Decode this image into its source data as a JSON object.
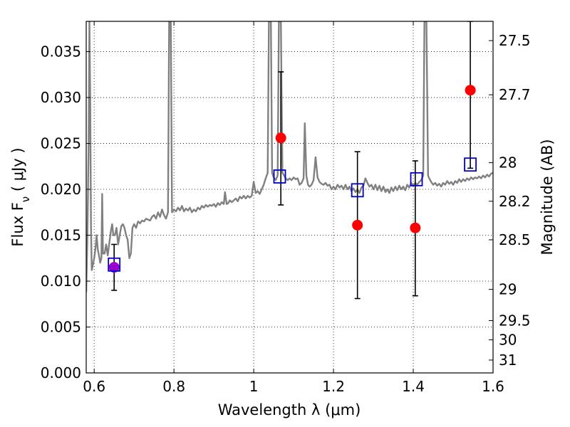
{
  "chart_data": {
    "type": "scatter",
    "xlabel": "Wavelength  λ (μm)",
    "ylabel_left": {
      "prefix": "Flux  F",
      "sub": "ν",
      "suffix": "  ( μJy )"
    },
    "ylabel_right": "Magnitude (AB)",
    "xlim": [
      0.58,
      1.6
    ],
    "ylim": [
      0.0,
      0.0383
    ],
    "grid": true,
    "x_ticks": [
      {
        "value": 0.6,
        "label": "0.6"
      },
      {
        "value": 0.8,
        "label": "0.8"
      },
      {
        "value": 1.0,
        "label": "1"
      },
      {
        "value": 1.2,
        "label": "1.2"
      },
      {
        "value": 1.4,
        "label": "1.4"
      },
      {
        "value": 1.6,
        "label": "1.6"
      }
    ],
    "y_ticks": [
      {
        "value": 0.0,
        "label": "0.000"
      },
      {
        "value": 0.005,
        "label": "0.005"
      },
      {
        "value": 0.01,
        "label": "0.010"
      },
      {
        "value": 0.015,
        "label": "0.015"
      },
      {
        "value": 0.02,
        "label": "0.020"
      },
      {
        "value": 0.025,
        "label": "0.025"
      },
      {
        "value": 0.03,
        "label": "0.030"
      },
      {
        "value": 0.035,
        "label": "0.035"
      }
    ],
    "right_ticks": [
      {
        "flux": 0.0362,
        "label": "27.5"
      },
      {
        "flux": 0.0303,
        "label": "27.7"
      },
      {
        "flux": 0.0229,
        "label": "28"
      },
      {
        "flux": 0.0187,
        "label": "28.2"
      },
      {
        "flux": 0.0145,
        "label": "28.5"
      },
      {
        "flux": 0.0091,
        "label": "29"
      },
      {
        "flux": 0.0057,
        "label": "29.5"
      },
      {
        "flux": 0.0036,
        "label": "30"
      },
      {
        "flux": 0.0014,
        "label": "31"
      }
    ],
    "series": [
      {
        "kind": "spectrum",
        "color": "#808080",
        "points": [
          [
            0.58,
            0.0088
          ],
          [
            0.583,
            0.015
          ],
          [
            0.586,
            0.025
          ],
          [
            0.588,
            0.0383
          ],
          [
            0.59,
            0.03
          ],
          [
            0.592,
            0.016
          ],
          [
            0.594,
            0.0112
          ],
          [
            0.597,
            0.0118
          ],
          [
            0.6,
            0.0125
          ],
          [
            0.603,
            0.0135
          ],
          [
            0.606,
            0.015
          ],
          [
            0.609,
            0.0135
          ],
          [
            0.612,
            0.0128
          ],
          [
            0.615,
            0.012
          ],
          [
            0.618,
            0.0125
          ],
          [
            0.62,
            0.0195
          ],
          [
            0.622,
            0.013
          ],
          [
            0.626,
            0.013
          ],
          [
            0.63,
            0.014
          ],
          [
            0.634,
            0.0128
          ],
          [
            0.638,
            0.0142
          ],
          [
            0.642,
            0.0155
          ],
          [
            0.645,
            0.0162
          ],
          [
            0.648,
            0.015
          ],
          [
            0.652,
            0.015
          ],
          [
            0.656,
            0.0158
          ],
          [
            0.66,
            0.014
          ],
          [
            0.664,
            0.015
          ],
          [
            0.668,
            0.016
          ],
          [
            0.672,
            0.0162
          ],
          [
            0.676,
            0.0158
          ],
          [
            0.68,
            0.015
          ],
          [
            0.684,
            0.0145
          ],
          [
            0.688,
            0.0125
          ],
          [
            0.692,
            0.013
          ],
          [
            0.696,
            0.0158
          ],
          [
            0.7,
            0.0162
          ],
          [
            0.705,
            0.0158
          ],
          [
            0.71,
            0.0165
          ],
          [
            0.715,
            0.0163
          ],
          [
            0.72,
            0.0166
          ],
          [
            0.725,
            0.0165
          ],
          [
            0.73,
            0.0168
          ],
          [
            0.735,
            0.0167
          ],
          [
            0.74,
            0.0166
          ],
          [
            0.745,
            0.017
          ],
          [
            0.75,
            0.0172
          ],
          [
            0.755,
            0.0168
          ],
          [
            0.76,
            0.0175
          ],
          [
            0.765,
            0.017
          ],
          [
            0.77,
            0.0178
          ],
          [
            0.775,
            0.0172
          ],
          [
            0.78,
            0.0168
          ],
          [
            0.785,
            0.0175
          ],
          [
            0.788,
            0.0383
          ],
          [
            0.792,
            0.0383
          ],
          [
            0.795,
            0.0175
          ],
          [
            0.8,
            0.0178
          ],
          [
            0.805,
            0.0176
          ],
          [
            0.81,
            0.018
          ],
          [
            0.815,
            0.0177
          ],
          [
            0.82,
            0.0182
          ],
          [
            0.825,
            0.0176
          ],
          [
            0.83,
            0.0179
          ],
          [
            0.835,
            0.0177
          ],
          [
            0.84,
            0.018
          ],
          [
            0.845,
            0.0175
          ],
          [
            0.85,
            0.0178
          ],
          [
            0.855,
            0.0176
          ],
          [
            0.86,
            0.018
          ],
          [
            0.865,
            0.0178
          ],
          [
            0.87,
            0.0182
          ],
          [
            0.875,
            0.018
          ],
          [
            0.88,
            0.0183
          ],
          [
            0.885,
            0.0181
          ],
          [
            0.89,
            0.0183
          ],
          [
            0.895,
            0.0182
          ],
          [
            0.9,
            0.0184
          ],
          [
            0.905,
            0.0181
          ],
          [
            0.91,
            0.0185
          ],
          [
            0.915,
            0.0183
          ],
          [
            0.92,
            0.0186
          ],
          [
            0.925,
            0.0184
          ],
          [
            0.928,
            0.0197
          ],
          [
            0.932,
            0.0184
          ],
          [
            0.936,
            0.0185
          ],
          [
            0.94,
            0.0188
          ],
          [
            0.945,
            0.0186
          ],
          [
            0.95,
            0.0188
          ],
          [
            0.955,
            0.019
          ],
          [
            0.96,
            0.0187
          ],
          [
            0.965,
            0.0192
          ],
          [
            0.97,
            0.019
          ],
          [
            0.975,
            0.0193
          ],
          [
            0.98,
            0.019
          ],
          [
            0.985,
            0.0193
          ],
          [
            0.99,
            0.0191
          ],
          [
            0.995,
            0.0193
          ],
          [
            1.0,
            0.0208
          ],
          [
            1.005,
            0.0196
          ],
          [
            1.01,
            0.0198
          ],
          [
            1.015,
            0.0195
          ],
          [
            1.02,
            0.02
          ],
          [
            1.025,
            0.0205
          ],
          [
            1.03,
            0.0212
          ],
          [
            1.035,
            0.0218
          ],
          [
            1.038,
            0.0383
          ],
          [
            1.043,
            0.0383
          ],
          [
            1.046,
            0.0218
          ],
          [
            1.05,
            0.0213
          ],
          [
            1.055,
            0.021
          ],
          [
            1.06,
            0.0215
          ],
          [
            1.063,
            0.0383
          ],
          [
            1.068,
            0.0383
          ],
          [
            1.072,
            0.0218
          ],
          [
            1.076,
            0.0215
          ],
          [
            1.08,
            0.0212
          ],
          [
            1.085,
            0.021
          ],
          [
            1.09,
            0.0212
          ],
          [
            1.095,
            0.021
          ],
          [
            1.1,
            0.0213
          ],
          [
            1.105,
            0.0211
          ],
          [
            1.11,
            0.0212
          ],
          [
            1.115,
            0.0205
          ],
          [
            1.12,
            0.0207
          ],
          [
            1.125,
            0.0212
          ],
          [
            1.128,
            0.0272
          ],
          [
            1.132,
            0.0215
          ],
          [
            1.136,
            0.0205
          ],
          [
            1.14,
            0.0203
          ],
          [
            1.145,
            0.0205
          ],
          [
            1.15,
            0.021
          ],
          [
            1.155,
            0.0235
          ],
          [
            1.16,
            0.0213
          ],
          [
            1.165,
            0.0208
          ],
          [
            1.17,
            0.0206
          ],
          [
            1.175,
            0.0205
          ],
          [
            1.18,
            0.0207
          ],
          [
            1.185,
            0.0204
          ],
          [
            1.19,
            0.0205
          ],
          [
            1.195,
            0.02
          ],
          [
            1.2,
            0.0203
          ],
          [
            1.205,
            0.02
          ],
          [
            1.21,
            0.0205
          ],
          [
            1.215,
            0.0202
          ],
          [
            1.22,
            0.0204
          ],
          [
            1.225,
            0.02
          ],
          [
            1.23,
            0.0205
          ],
          [
            1.235,
            0.02
          ],
          [
            1.24,
            0.0203
          ],
          [
            1.245,
            0.0198
          ],
          [
            1.25,
            0.0201
          ],
          [
            1.255,
            0.0197
          ],
          [
            1.26,
            0.02
          ],
          [
            1.265,
            0.0196
          ],
          [
            1.27,
            0.0202
          ],
          [
            1.275,
            0.0204
          ],
          [
            1.28,
            0.0212
          ],
          [
            1.285,
            0.0207
          ],
          [
            1.29,
            0.0203
          ],
          [
            1.295,
            0.0205
          ],
          [
            1.3,
            0.02
          ],
          [
            1.305,
            0.0205
          ],
          [
            1.31,
            0.0199
          ],
          [
            1.315,
            0.0204
          ],
          [
            1.32,
            0.0198
          ],
          [
            1.325,
            0.0203
          ],
          [
            1.33,
            0.0197
          ],
          [
            1.335,
            0.02
          ],
          [
            1.34,
            0.0196
          ],
          [
            1.345,
            0.0202
          ],
          [
            1.35,
            0.0198
          ],
          [
            1.355,
            0.0203
          ],
          [
            1.36,
            0.0199
          ],
          [
            1.365,
            0.0204
          ],
          [
            1.37,
            0.02
          ],
          [
            1.375,
            0.0203
          ],
          [
            1.38,
            0.0199
          ],
          [
            1.385,
            0.0205
          ],
          [
            1.39,
            0.0202
          ],
          [
            1.395,
            0.0207
          ],
          [
            1.4,
            0.0204
          ],
          [
            1.405,
            0.0207
          ],
          [
            1.41,
            0.0205
          ],
          [
            1.415,
            0.0208
          ],
          [
            1.42,
            0.021
          ],
          [
            1.425,
            0.0215
          ],
          [
            1.428,
            0.0383
          ],
          [
            1.433,
            0.0383
          ],
          [
            1.437,
            0.0215
          ],
          [
            1.44,
            0.0212
          ],
          [
            1.445,
            0.0208
          ],
          [
            1.45,
            0.0205
          ],
          [
            1.455,
            0.0207
          ],
          [
            1.46,
            0.0204
          ],
          [
            1.465,
            0.0206
          ],
          [
            1.47,
            0.0203
          ],
          [
            1.475,
            0.0207
          ],
          [
            1.48,
            0.0205
          ],
          [
            1.485,
            0.0209
          ],
          [
            1.49,
            0.0206
          ],
          [
            1.495,
            0.0208
          ],
          [
            1.5,
            0.0205
          ],
          [
            1.505,
            0.0209
          ],
          [
            1.51,
            0.0207
          ],
          [
            1.515,
            0.0211
          ],
          [
            1.52,
            0.0208
          ],
          [
            1.525,
            0.0211
          ],
          [
            1.53,
            0.0209
          ],
          [
            1.535,
            0.0212
          ],
          [
            1.54,
            0.021
          ],
          [
            1.545,
            0.0213
          ],
          [
            1.55,
            0.0211
          ],
          [
            1.555,
            0.0213
          ],
          [
            1.56,
            0.0212
          ],
          [
            1.565,
            0.0214
          ],
          [
            1.57,
            0.0212
          ],
          [
            1.575,
            0.0215
          ],
          [
            1.58,
            0.0213
          ],
          [
            1.585,
            0.0216
          ],
          [
            1.59,
            0.0214
          ],
          [
            1.595,
            0.0217
          ],
          [
            1.6,
            0.0218
          ]
        ]
      },
      {
        "kind": "observed",
        "color": "#ff0000",
        "points": [
          {
            "x": 0.65,
            "y": 0.0115,
            "ylo": 0.009,
            "yhi": 0.014,
            "color": "#9900cc"
          },
          {
            "x": 1.068,
            "y": 0.0256,
            "ylo": 0.0183,
            "yhi": 0.0328
          },
          {
            "x": 1.26,
            "y": 0.0161,
            "ylo": 0.0081,
            "yhi": 0.0241
          },
          {
            "x": 1.405,
            "y": 0.0158,
            "ylo": 0.0084,
            "yhi": 0.0231
          },
          {
            "x": 1.543,
            "y": 0.0308,
            "ylo": 0.0223,
            "yhi": 0.0383
          }
        ]
      },
      {
        "kind": "model",
        "color": "#0000cc",
        "points": [
          {
            "x": 0.65,
            "y": 0.0118
          },
          {
            "x": 1.065,
            "y": 0.0214
          },
          {
            "x": 1.26,
            "y": 0.0199
          },
          {
            "x": 1.408,
            "y": 0.0211
          },
          {
            "x": 1.543,
            "y": 0.0227
          }
        ]
      }
    ]
  }
}
